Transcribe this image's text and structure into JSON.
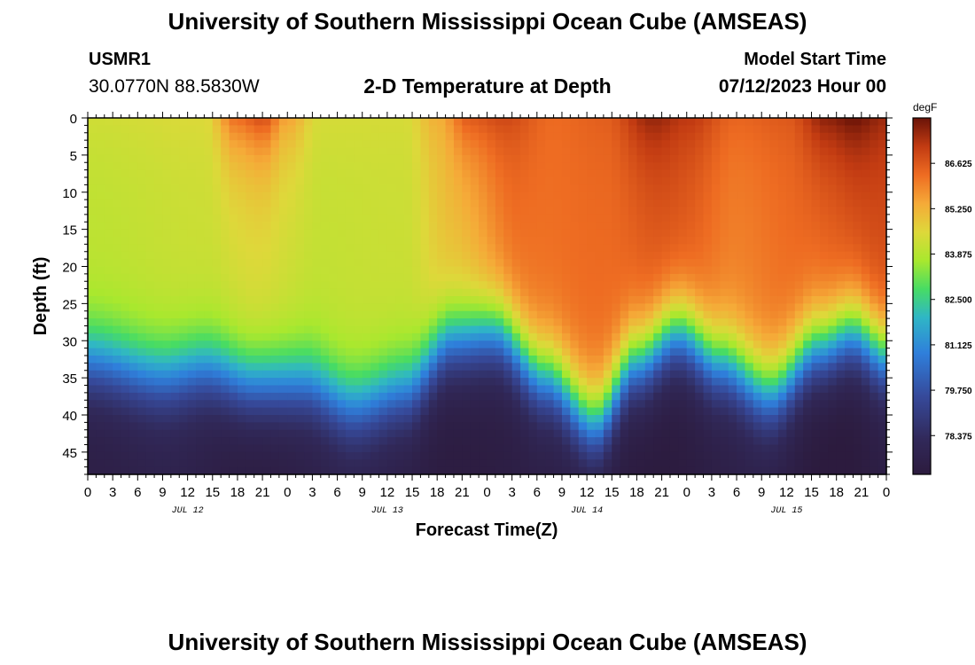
{
  "header": {
    "title": "University of Southern Mississippi Ocean Cube (AMSEAS)",
    "station": "USMR1",
    "coords": "30.0770N  88.5830W",
    "subtitle": "2-D Temperature at Depth",
    "model_start_label": "Model Start Time",
    "model_start_value": "07/12/2023 Hour 00"
  },
  "footer": {
    "title": "University of Southern Mississippi Ocean Cube (AMSEAS)"
  },
  "chart_data": {
    "type": "heatmap",
    "title": "2-D Temperature at Depth",
    "xlabel": "Forecast Time(Z)",
    "ylabel": "Depth (ft)",
    "xlim": [
      0,
      96
    ],
    "ylim": [
      48,
      0
    ],
    "x_tick_labels": [
      "0",
      "3",
      "6",
      "9",
      "12",
      "15",
      "18",
      "21",
      "0",
      "3",
      "6",
      "9",
      "12",
      "15",
      "18",
      "21",
      "0",
      "3",
      "6",
      "9",
      "12",
      "15",
      "18",
      "21",
      "0",
      "3",
      "6",
      "9",
      "12",
      "15",
      "18",
      "21",
      "0"
    ],
    "day_labels": [
      {
        "text": "JUL 12",
        "hour": 12
      },
      {
        "text": "JUL 13",
        "hour": 36
      },
      {
        "text": "JUL 14",
        "hour": 60
      },
      {
        "text": "JUL 15",
        "hour": 84
      }
    ],
    "y_ticks": [
      0,
      5,
      10,
      15,
      20,
      25,
      30,
      35,
      40,
      45
    ],
    "colorbar": {
      "unit": "degF",
      "min": 77.2,
      "max": 88.0,
      "tick_values": [
        86.625,
        85.25,
        83.875,
        82.5,
        81.125,
        79.75,
        78.375
      ],
      "tick_labels": [
        "86.625",
        "85.250",
        "83.875",
        "82.500",
        "81.125",
        "79.750",
        "78.375"
      ]
    },
    "thermocline_depth_ft": [
      {
        "hour": 0,
        "depth": 33
      },
      {
        "hour": 9,
        "depth": 35
      },
      {
        "hour": 14,
        "depth": 34
      },
      {
        "hour": 20,
        "depth": 36
      },
      {
        "hour": 26,
        "depth": 36
      },
      {
        "hour": 32,
        "depth": 39
      },
      {
        "hour": 38,
        "depth": 37
      },
      {
        "hour": 44,
        "depth": 30
      },
      {
        "hour": 49,
        "depth": 29
      },
      {
        "hour": 55,
        "depth": 35
      },
      {
        "hour": 61,
        "depth": 41
      },
      {
        "hour": 66,
        "depth": 33
      },
      {
        "hour": 71,
        "depth": 29
      },
      {
        "hour": 76,
        "depth": 33
      },
      {
        "hour": 82,
        "depth": 37
      },
      {
        "hour": 88,
        "depth": 31
      },
      {
        "hour": 92,
        "depth": 29
      },
      {
        "hour": 96,
        "depth": 32
      }
    ],
    "surface_layer_degF": [
      {
        "hour": 0,
        "value": 84.3
      },
      {
        "hour": 14,
        "value": 84.5
      },
      {
        "hour": 18,
        "value": 86.3
      },
      {
        "hour": 21,
        "value": 86.8
      },
      {
        "hour": 24,
        "value": 85.5
      },
      {
        "hour": 28,
        "value": 84.4
      },
      {
        "hour": 38,
        "value": 84.4
      },
      {
        "hour": 42,
        "value": 85.3
      },
      {
        "hour": 46,
        "value": 86.6
      },
      {
        "hour": 50,
        "value": 86.9
      },
      {
        "hour": 56,
        "value": 86.3
      },
      {
        "hour": 62,
        "value": 86.5
      },
      {
        "hour": 68,
        "value": 87.6
      },
      {
        "hour": 72,
        "value": 87.2
      },
      {
        "hour": 78,
        "value": 86.4
      },
      {
        "hour": 84,
        "value": 86.6
      },
      {
        "hour": 89,
        "value": 87.7
      },
      {
        "hour": 92,
        "value": 88.0
      },
      {
        "hour": 96,
        "value": 87.5
      }
    ],
    "mixed_layer_degF": [
      {
        "hour": 0,
        "value": 84.0
      },
      {
        "hour": 15,
        "value": 84.2
      },
      {
        "hour": 20,
        "value": 84.4
      },
      {
        "hour": 28,
        "value": 84.1
      },
      {
        "hour": 38,
        "value": 84.2
      },
      {
        "hour": 44,
        "value": 85.0
      },
      {
        "hour": 52,
        "value": 86.2
      },
      {
        "hour": 62,
        "value": 86.3
      },
      {
        "hour": 70,
        "value": 86.6
      },
      {
        "hour": 78,
        "value": 86.0
      },
      {
        "hour": 86,
        "value": 86.3
      },
      {
        "hour": 96,
        "value": 86.8
      }
    ],
    "bottom_layer_degF": [
      {
        "hour": 0,
        "value": 77.5
      },
      {
        "hour": 10,
        "value": 77.7
      },
      {
        "hour": 20,
        "value": 77.3
      },
      {
        "hour": 32,
        "value": 77.7
      },
      {
        "hour": 44,
        "value": 77.3
      },
      {
        "hour": 56,
        "value": 77.5
      },
      {
        "hour": 68,
        "value": 77.2
      },
      {
        "hour": 80,
        "value": 77.6
      },
      {
        "hour": 90,
        "value": 77.1
      },
      {
        "hour": 96,
        "value": 77.4
      }
    ]
  }
}
